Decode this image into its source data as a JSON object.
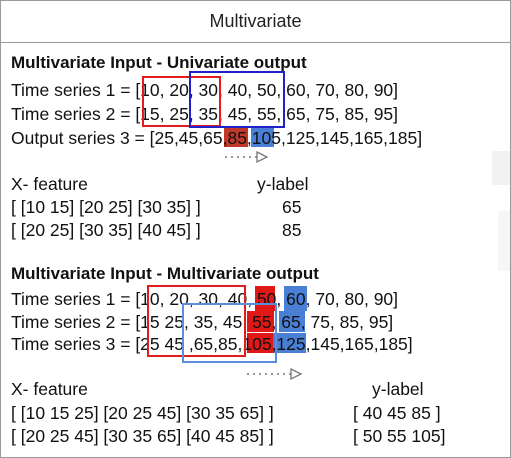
{
  "header": {
    "title": "Multivariate"
  },
  "section1": {
    "heading": "Multivariate Input - Univariate output",
    "rows": [
      "Time series 1 = [10, 20, 30, 40, 50, 60, 70, 80, 90]",
      "Time series 2 = [15, 25, 35, 45, 55, 65, 75, 85, 95]",
      "Output series 3  = [25,45,65,85,105,125,145,165,185]"
    ],
    "x_header": "X- feature",
    "y_header": "y-label",
    "table": [
      {
        "x": "[ [10 15] [20 25] [30 35] ]",
        "y": "65"
      },
      {
        "x": "[ [20 25] [30 35] [40 45] ]",
        "y": "85"
      }
    ]
  },
  "section2": {
    "heading": "Multivariate Input - Multivariate output",
    "rows": [
      "Time series 1  = [10, 20, 30, 40, 50, 60, 70, 80, 90]",
      "Time series 2 = [15  25, 35, 45, 55, 65, 75, 85, 95]",
      "Time series 3 = [25  45 ,65,85,105,125,145,165,185]"
    ],
    "x_header": "X- feature",
    "y_header": "y-label",
    "table": [
      {
        "x": "[ [10 15 25] [20 25 45] [30 35 65] ]",
        "y": "[ 40 45 85 ]"
      },
      {
        "x": "[ [20 25 45] [30 35 65] [40 45 85] ]",
        "y": "[ 50 55 105]"
      }
    ]
  },
  "colors": {
    "red": "#e41b1b",
    "dark_red_fill": "#c0392b",
    "blue": "#1d22c9",
    "light_blue": "#5b8fde",
    "blue_fill": "#4a7fd6"
  }
}
